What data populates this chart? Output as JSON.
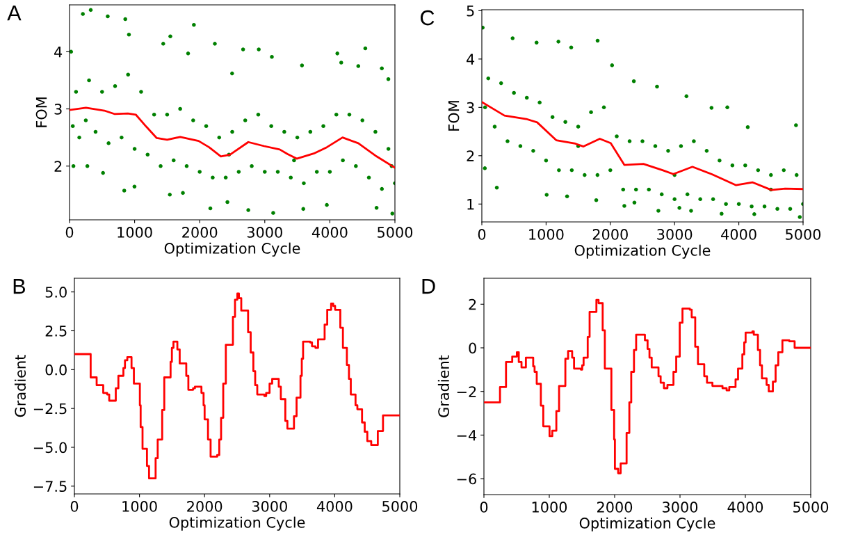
{
  "chart_data": [
    {
      "type": "scatter",
      "title": "A",
      "xlabel": "Optimization Cycle",
      "ylabel": "FOM",
      "xlim": [
        0,
        5000
      ],
      "ylim": [
        1.06,
        4.82
      ],
      "xticks": [
        0,
        1000,
        2000,
        3000,
        4000,
        5000
      ],
      "yticks": [
        2,
        3,
        4
      ],
      "grid": false,
      "series": [
        {
          "type": "scatter",
          "marker": "circle",
          "color": "#008000",
          "x": [
            205,
            326,
            587,
            857,
            1911,
            2233,
            4545,
            3130,
            2747,
            2164,
            4960,
            3592,
            841,
            998,
            24,
            60,
            274,
            515,
            1541,
            1742,
            2426,
            3954,
            4718,
            2908,
            2667,
            4115,
            4175,
            1549,
            913,
            1440,
            4799,
            3572,
            3109,
            4437,
            4899,
            2498,
            1822,
            100,
            150,
            300,
            400,
            500,
            600,
            700,
            800,
            900,
            1000,
            1100,
            1200,
            1300,
            1400,
            1500,
            1600,
            1700,
            1800,
            1900,
            2000,
            2100,
            2200,
            2300,
            2400,
            2500,
            2600,
            2700,
            2800,
            2900,
            3000,
            3100,
            3200,
            3300,
            3400,
            3500,
            3600,
            3700,
            3800,
            3900,
            4000,
            4100,
            4200,
            4300,
            4400,
            4500,
            4600,
            4700,
            4800,
            4900,
            5000,
            50,
            250,
            2450,
            3450,
            4950
          ],
          "values": [
            4.66,
            4.73,
            4.62,
            4.57,
            4.47,
            4.14,
            4.06,
            1.18,
            1.23,
            1.26,
            1.17,
            1.25,
            1.57,
            1.64,
            4.0,
            2.0,
            2.0,
            1.88,
            1.5,
            1.53,
            1.37,
            1.32,
            1.27,
            4.04,
            4.04,
            3.97,
            3.81,
            4.27,
            4.3,
            4.14,
            3.71,
            3.76,
            3.91,
            3.75,
            3.52,
            3.62,
            3.97,
            3.3,
            2.5,
            3.5,
            2.6,
            3.3,
            2.4,
            3.4,
            2.5,
            3.6,
            2.3,
            3.3,
            2.2,
            2.9,
            2.0,
            2.9,
            2.1,
            3.0,
            2.0,
            2.8,
            1.9,
            2.7,
            1.8,
            2.5,
            1.8,
            2.6,
            1.9,
            2.8,
            2.0,
            2.9,
            1.9,
            2.7,
            1.9,
            2.6,
            1.8,
            2.5,
            1.7,
            2.6,
            1.9,
            2.7,
            1.9,
            2.9,
            2.1,
            2.9,
            2.0,
            2.8,
            1.8,
            2.6,
            1.6,
            2.3,
            1.7,
            2.7,
            2.8,
            2.2,
            2.1,
            2.0
          ]
        },
        {
          "type": "line",
          "color": "#ff0000",
          "x": [
            0,
            253,
            535,
            696,
            897,
            1018,
            1179,
            1340,
            1500,
            1701,
            1983,
            2144,
            2325,
            2465,
            2747,
            2989,
            3230,
            3351,
            3491,
            3753,
            3954,
            4195,
            4437,
            4718,
            5000
          ],
          "values": [
            2.98,
            3.02,
            2.97,
            2.91,
            2.92,
            2.9,
            2.69,
            2.49,
            2.46,
            2.51,
            2.44,
            2.33,
            2.17,
            2.2,
            2.42,
            2.35,
            2.29,
            2.21,
            2.13,
            2.22,
            2.33,
            2.5,
            2.4,
            2.17,
            1.97
          ]
        }
      ]
    },
    {
      "type": "scatter",
      "title": "C",
      "xlabel": "Optimization Cycle",
      "ylabel": "FOM",
      "xlim": [
        0,
        5000
      ],
      "ylim": [
        0.63,
        5.02
      ],
      "xticks": [
        0,
        1000,
        2000,
        3000,
        4000,
        5000
      ],
      "yticks": [
        1,
        2,
        3,
        4,
        5
      ],
      "grid": false,
      "series": [
        {
          "type": "scatter",
          "marker": "circle",
          "color": "#008000",
          "x": [
            13,
            479,
            852,
            1192,
            1391,
            1802,
            3821,
            3185,
            2727,
            4139,
            4890,
            233,
            47,
            1327,
            1781,
            2375,
            2748,
            3732,
            4241,
            4949,
            3257,
            3075,
            1009,
            2218,
            2366,
            3575,
            2027,
            100,
            200,
            300,
            400,
            500,
            600,
            700,
            800,
            900,
            1000,
            1100,
            1200,
            1300,
            1400,
            1500,
            1600,
            1700,
            1800,
            1900,
            2000,
            2100,
            2200,
            2300,
            2400,
            2500,
            2600,
            2700,
            2800,
            2900,
            3000,
            3100,
            3200,
            3300,
            3400,
            3500,
            3600,
            3700,
            3800,
            3900,
            4000,
            4100,
            4200,
            4300,
            4400,
            4500,
            4600,
            4700,
            4800,
            4900,
            5000,
            50,
            1500,
            3000,
            4500
          ],
          "values": [
            4.65,
            4.43,
            4.34,
            4.36,
            4.24,
            4.38,
            3.0,
            3.23,
            3.43,
            2.59,
            2.63,
            1.34,
            1.74,
            1.16,
            1.08,
            1.03,
            0.86,
            0.8,
            0.79,
            0.73,
            0.86,
            0.92,
            1.19,
            0.96,
            3.54,
            2.99,
            3.87,
            3.6,
            2.6,
            3.5,
            2.3,
            3.3,
            2.2,
            3.2,
            2.1,
            3.1,
            1.9,
            2.8,
            1.7,
            2.7,
            1.7,
            2.6,
            1.6,
            2.9,
            1.6,
            3.0,
            1.7,
            2.4,
            1.3,
            2.3,
            1.3,
            2.3,
            1.3,
            2.2,
            1.2,
            2.1,
            1.1,
            2.2,
            1.2,
            2.3,
            1.1,
            2.1,
            1.1,
            1.9,
            1.0,
            1.8,
            1.0,
            1.8,
            0.95,
            1.7,
            0.95,
            1.6,
            0.9,
            1.7,
            0.9,
            1.6,
            1.0,
            3.0,
            2.2,
            1.6,
            1.3
          ]
        },
        {
          "type": "line",
          "color": "#ff0000",
          "x": [
            0,
            352,
            691,
            861,
            1158,
            1455,
            1582,
            1836,
            2006,
            2218,
            2515,
            2812,
            2981,
            3278,
            3575,
            3957,
            4211,
            4508,
            4720,
            5000
          ],
          "values": [
            3.11,
            2.83,
            2.76,
            2.69,
            2.32,
            2.25,
            2.19,
            2.35,
            2.26,
            1.81,
            1.83,
            1.7,
            1.62,
            1.77,
            1.62,
            1.39,
            1.45,
            1.29,
            1.32,
            1.31
          ]
        }
      ]
    },
    {
      "type": "step",
      "title": "B",
      "xlabel": "Optimization Cycle",
      "ylabel": "Gradient",
      "xlim": [
        0,
        5000
      ],
      "ylim": [
        -8.0,
        5.88
      ],
      "xticks": [
        0,
        1000,
        2000,
        3000,
        4000,
        5000
      ],
      "yticks": [
        {
          "value": -7.5,
          "label": "−7.5"
        },
        {
          "value": -5,
          "label": "−5.0"
        },
        {
          "value": -2.5,
          "label": "−2.5"
        },
        {
          "value": 0,
          "label": "0.0"
        },
        {
          "value": 2.5,
          "label": "2.5"
        },
        {
          "value": 5,
          "label": "5.0"
        }
      ],
      "grid": false,
      "series": [
        {
          "color": "#ff0000",
          "x": [
            0,
            250,
            342,
            443,
            503,
            535,
            636,
            676,
            753,
            777,
            813,
            878,
            914,
            1006,
            1018,
            1047,
            1115,
            1147,
            1248,
            1280,
            1349,
            1381,
            1478,
            1498,
            1522,
            1582,
            1618,
            1719,
            1751,
            1824,
            1852,
            1952,
            1985,
            2001,
            2053,
            2093,
            2194,
            2226,
            2254,
            2287,
            2327,
            2436,
            2468,
            2504,
            2528,
            2564,
            2669,
            2709,
            2750,
            2778,
            2810,
            2919,
            2947,
            2999,
            3039,
            3140,
            3172,
            3241,
            3273,
            3374,
            3414,
            3474,
            3494,
            3514,
            3623,
            3651,
            3704,
            3744,
            3845,
            3885,
            3945,
            3977,
            4006,
            4086,
            4126,
            4187,
            4219,
            4247,
            4320,
            4348,
            4420,
            4461,
            4501,
            4561,
            4662,
            4742,
            5000
          ],
          "values": [
            1.0,
            -0.5,
            -1.0,
            -1.5,
            -1.6,
            -2.0,
            -1.2,
            -0.4,
            0.1,
            0.6,
            0.8,
            0.1,
            -0.9,
            -2.3,
            -3.7,
            -5.1,
            -6.2,
            -7.0,
            -5.7,
            -4.5,
            -2.6,
            -0.5,
            0.5,
            1.4,
            1.8,
            1.3,
            0.4,
            -0.4,
            -1.3,
            -1.2,
            -1.1,
            -1.5,
            -2.3,
            -3.2,
            -4.5,
            -5.6,
            -5.5,
            -4.5,
            -3.1,
            -0.9,
            1.6,
            3.4,
            4.5,
            4.9,
            4.6,
            3.8,
            2.4,
            1.1,
            -0.1,
            -1.0,
            -1.6,
            -1.7,
            -1.5,
            -0.9,
            -0.6,
            -1.1,
            -1.9,
            -3.3,
            -3.8,
            -3.0,
            -1.8,
            -0.4,
            0.7,
            1.8,
            1.75,
            1.5,
            1.4,
            1.95,
            2.9,
            3.85,
            4.25,
            4.1,
            3.85,
            2.7,
            1.4,
            0.3,
            -0.6,
            -1.6,
            -2.3,
            -2.55,
            -3.4,
            -4.0,
            -4.6,
            -4.85,
            -3.95,
            -2.95,
            -2.95
          ]
        }
      ]
    },
    {
      "type": "step",
      "title": "D",
      "xlabel": "Optimization Cycle",
      "ylabel": "Gradient",
      "xlim": [
        0,
        5000
      ],
      "ylim": [
        -6.73,
        3.19
      ],
      "xticks": [
        0,
        1000,
        2000,
        3000,
        4000,
        5000
      ],
      "yticks": [
        {
          "value": -6,
          "label": "−6"
        },
        {
          "value": -4,
          "label": "−4"
        },
        {
          "value": -2,
          "label": "−2"
        },
        0,
        2
      ],
      "grid": false,
      "series": [
        {
          "color": "#ff0000",
          "x": [
            0,
            246,
            338,
            433,
            504,
            533,
            575,
            642,
            754,
            775,
            808,
            871,
            908,
            1004,
            1046,
            1108,
            1150,
            1246,
            1288,
            1350,
            1379,
            1483,
            1504,
            1525,
            1588,
            1617,
            1721,
            1754,
            1817,
            1850,
            1950,
            1992,
            2004,
            2054,
            2092,
            2183,
            2225,
            2254,
            2296,
            2329,
            2433,
            2463,
            2504,
            2533,
            2567,
            2671,
            2704,
            2754,
            2808,
            2900,
            2942,
            2996,
            3038,
            3150,
            3179,
            3233,
            3275,
            3371,
            3413,
            3496,
            3650,
            3713,
            3754,
            3850,
            3888,
            3954,
            3983,
            4004,
            4108,
            4129,
            4192,
            4225,
            4254,
            4325,
            4358,
            4421,
            4463,
            4504,
            4567,
            4671,
            4754,
            5000
          ],
          "values": [
            -2.5,
            -1.8,
            -0.65,
            -0.4,
            -0.2,
            -0.65,
            -0.9,
            -0.45,
            -0.85,
            -1.1,
            -1.65,
            -2.65,
            -3.6,
            -4.05,
            -3.8,
            -2.9,
            -1.75,
            -0.5,
            -0.15,
            -0.45,
            -0.95,
            -1.0,
            -0.8,
            -0.45,
            0.5,
            1.65,
            2.2,
            2.05,
            0.8,
            -0.95,
            -2.85,
            -4.2,
            -5.55,
            -5.75,
            -5.3,
            -3.9,
            -2.5,
            -1.1,
            -0.1,
            0.6,
            0.6,
            0.35,
            -0.05,
            -0.45,
            -0.9,
            -1.3,
            -1.6,
            -1.85,
            -1.7,
            -1.1,
            -0.4,
            1.15,
            1.8,
            1.75,
            1.4,
            0.05,
            -0.75,
            -1.3,
            -1.6,
            -1.75,
            -1.85,
            -1.95,
            -1.8,
            -1.45,
            -0.95,
            -0.3,
            0.25,
            0.7,
            0.75,
            0.6,
            -0.1,
            -0.8,
            -1.4,
            -1.7,
            -2.0,
            -1.55,
            -0.8,
            -0.2,
            0.35,
            0.3,
            0.0,
            0.0
          ]
        }
      ]
    }
  ]
}
